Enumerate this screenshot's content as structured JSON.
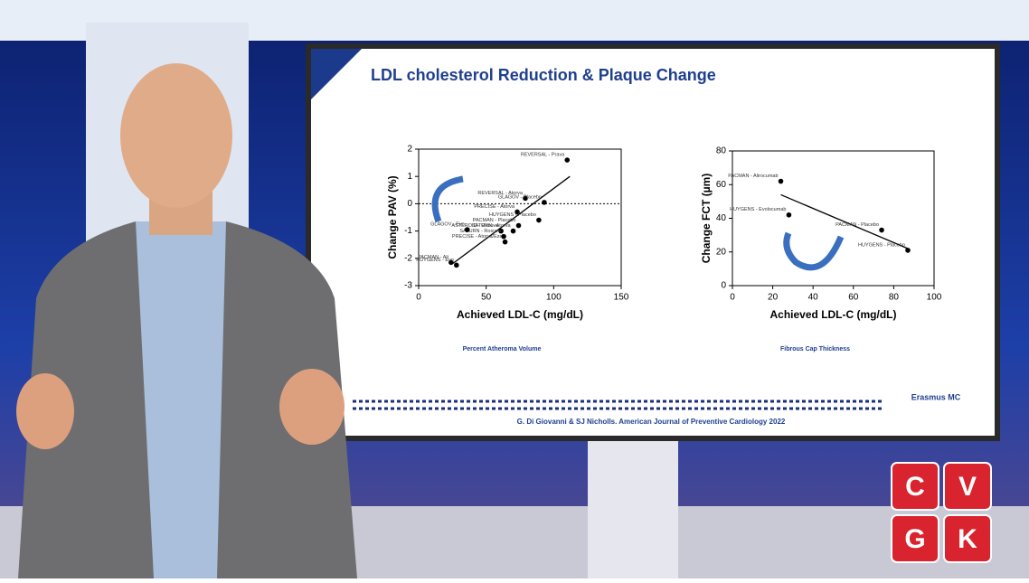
{
  "slide": {
    "title": "LDL cholesterol Reduction & Plaque Change",
    "citation": "G. Di Giovanni & SJ Nicholls. American Journal of Preventive Cardiology 2022",
    "logo": "Erasmus MC"
  },
  "brand": {
    "letters": [
      "C",
      "V",
      "G",
      "K"
    ]
  },
  "chart_data": [
    {
      "type": "scatter",
      "subtitle": "Percent Atheroma Volume",
      "x_label": "Achieved LDL-C (mg/dL)",
      "y_label": "Change PAV (%)",
      "xlim": [
        0,
        150
      ],
      "xticks": [
        0,
        50,
        100,
        150
      ],
      "ylim": [
        -3,
        2
      ],
      "yticks": [
        -3,
        -2,
        -1,
        0,
        1,
        2
      ],
      "reference_line": 0,
      "color": "#000000",
      "point_labels": [
        "REVERSAL - Prava",
        "REVERSAL - Atorva",
        "GLAGOV - Placebo",
        "PRECISE - Atorva",
        "HUYGENS - Placebo",
        "ASTEROID - Rosuva",
        "PACMAN - Placebo",
        "SATURN - Atorva",
        "SATURN - Rosuva",
        "PRECISE - Atorva/Eze",
        "GLAGOV - Evo",
        "PACMAN - Ali",
        "HUYGENS - Evo"
      ],
      "x": [
        110,
        79,
        93,
        73,
        89,
        61,
        74,
        70,
        63,
        64,
        36,
        24,
        28
      ],
      "values": [
        1.6,
        0.2,
        0.05,
        -0.3,
        -0.6,
        -1.0,
        -0.8,
        -1.0,
        -1.2,
        -1.4,
        -0.95,
        -2.15,
        -2.25
      ],
      "fit_line": {
        "x": [
          25,
          112
        ],
        "values": [
          -2.2,
          1.0
        ]
      }
    },
    {
      "type": "scatter",
      "subtitle": "Fibrous Cap Thickness",
      "x_label": "Achieved LDL-C (mg/dL)",
      "y_label": "Change FCT (µm)",
      "xlim": [
        0,
        100
      ],
      "xticks": [
        0,
        20,
        40,
        60,
        80,
        100
      ],
      "ylim": [
        0,
        80
      ],
      "yticks": [
        0,
        20,
        40,
        60,
        80
      ],
      "color": "#000000",
      "point_labels": [
        "PACMAN - Alirocumab",
        "HUYGENS - Evolocumab",
        "PACMAN - Placebo",
        "HUYGENS - Placebo"
      ],
      "x": [
        24,
        28,
        74,
        87
      ],
      "values": [
        62,
        42,
        33,
        21
      ],
      "fit_line": {
        "x": [
          24,
          87
        ],
        "values": [
          54,
          22
        ]
      }
    }
  ]
}
